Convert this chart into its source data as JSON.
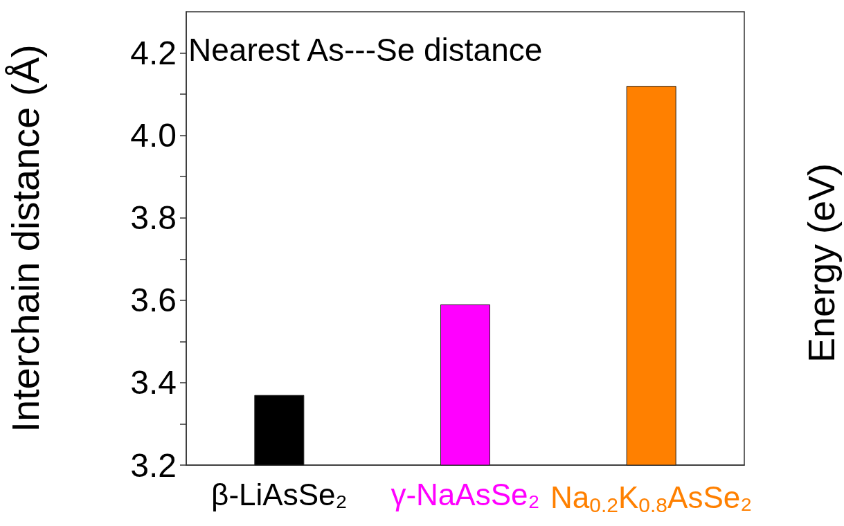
{
  "chart_data": {
    "type": "bar",
    "title": "Nearest As---Se distance",
    "ylabel": "Interchain distance (Å)",
    "annotations": [
      "Energy (eV)"
    ],
    "categories": [
      "β-LiAsSe₂",
      "γ-NaAsSe₂",
      "Na$_{0.2}$K$_{0.8}$AsSe₂"
    ],
    "values": [
      3.37,
      3.59,
      4.12
    ],
    "colors": [
      "#000000",
      "#ff00ff",
      "#ff8000"
    ],
    "ylim": [
      3.2,
      4.3
    ],
    "yticks": [
      3.2,
      {
        "value": 3.3,
        "label": null
      },
      3.4,
      {
        "value": 3.5,
        "label": null
      },
      3.6,
      {
        "value": 3.7,
        "label": null
      },
      3.8,
      {
        "value": 3.9,
        "label": null
      },
      {
        "value": 4.0,
        "label": "4.0"
      },
      {
        "value": 4.1,
        "label": null
      },
      4.2
    ],
    "grid": false
  }
}
